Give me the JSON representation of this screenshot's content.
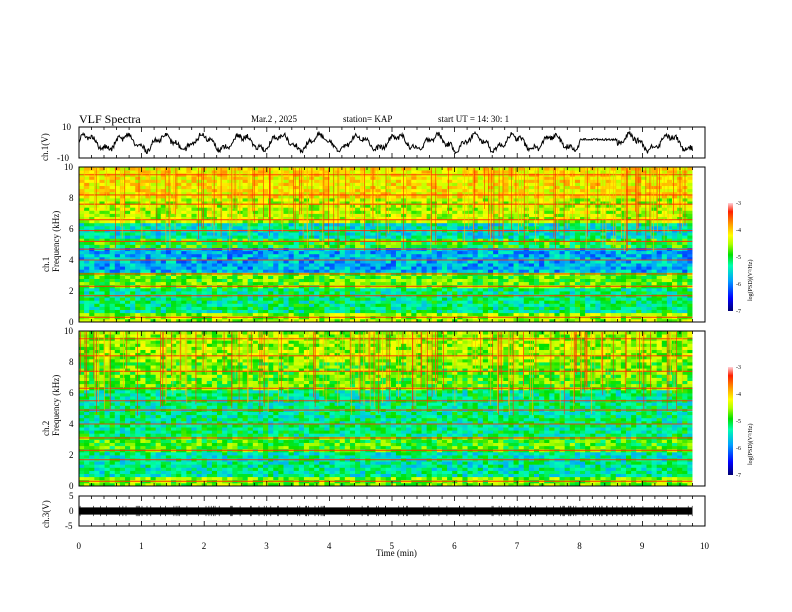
{
  "header": {
    "title": "VLF Spectra",
    "date": "Mar.2 , 2025",
    "station": "station= KAP",
    "start_ut": "start UT =  14: 30: 1"
  },
  "chart_data": [
    {
      "type": "line",
      "panel": "ch1-waveform",
      "ylabel": "ch.1(V)",
      "ylim": [
        -10,
        10
      ],
      "yticks": [
        "10",
        "-10"
      ],
      "xlim": [
        0,
        10
      ],
      "note_series": "continuous oscillating waveform, amplitude ~±6 V, quieter segment 8.0–8.6 min"
    },
    {
      "type": "heatmap",
      "panel": "ch1-spectrogram",
      "ylabel": "ch.1\nFrequency (kHz)",
      "ylim": [
        0,
        10
      ],
      "yticks": [
        "0",
        "2",
        "4",
        "6",
        "8",
        "10"
      ],
      "xlim": [
        0,
        10
      ],
      "data_end_min": 9.8,
      "colorbar": {
        "label": "log(PSD)(V²/Hz)",
        "range": [
          -7,
          -3
        ],
        "ticks": [
          "-3",
          "-4",
          "-5",
          "-6",
          "-7"
        ]
      },
      "bands_khz": [
        {
          "from": 0.0,
          "to": 0.6,
          "level": -4.6
        },
        {
          "from": 0.6,
          "to": 2.2,
          "level": -5.3
        },
        {
          "from": 2.2,
          "to": 3.2,
          "level": -4.8
        },
        {
          "from": 3.2,
          "to": 4.8,
          "level": -5.8
        },
        {
          "from": 4.8,
          "to": 5.4,
          "level": -5.0
        },
        {
          "from": 5.4,
          "to": 6.4,
          "level": -5.5
        },
        {
          "from": 6.4,
          "to": 8.0,
          "level": -4.5
        },
        {
          "from": 8.0,
          "to": 10.0,
          "level": -4.2
        }
      ],
      "lines_khz": [
        0.3,
        1.7,
        2.3,
        3.1,
        4.0,
        4.7,
        5.2,
        5.9,
        6.6,
        7.6,
        8.2,
        9.5
      ]
    },
    {
      "type": "heatmap",
      "panel": "ch2-spectrogram",
      "ylabel": "ch.2\nFrequency (kHz)",
      "ylim": [
        0,
        10
      ],
      "yticks": [
        "0",
        "2",
        "4",
        "6",
        "8",
        "10"
      ],
      "xlim": [
        0,
        10
      ],
      "data_end_min": 9.8,
      "colorbar": {
        "label": "log(PSD)(V²/Hz)",
        "range": [
          -7,
          -3
        ],
        "ticks": [
          "-3",
          "-4",
          "-5",
          "-6",
          "-7"
        ]
      },
      "bands_khz": [
        {
          "from": 0.0,
          "to": 0.6,
          "level": -4.7
        },
        {
          "from": 0.6,
          "to": 2.2,
          "level": -5.4
        },
        {
          "from": 2.2,
          "to": 3.2,
          "level": -4.9
        },
        {
          "from": 3.2,
          "to": 4.8,
          "level": -5.3
        },
        {
          "from": 4.8,
          "to": 6.2,
          "level": -5.3
        },
        {
          "from": 6.2,
          "to": 8.0,
          "level": -4.8
        },
        {
          "from": 8.0,
          "to": 10.0,
          "level": -4.6
        }
      ],
      "lines_khz": [
        0.3,
        1.7,
        2.3,
        3.1,
        4.0,
        4.9,
        5.5,
        6.3,
        7.4,
        8.4,
        9.5
      ]
    },
    {
      "type": "line",
      "panel": "ch3-waveform",
      "ylabel": "ch.3(V)",
      "ylim": [
        -5,
        5
      ],
      "yticks": [
        "5",
        "0",
        "-5"
      ],
      "xlabel": "Time (min)",
      "xlim": [
        0,
        10
      ],
      "xticks": [
        "0",
        "1",
        "2",
        "3",
        "4",
        "5",
        "6",
        "7",
        "8",
        "9",
        "10"
      ],
      "note_series": "thick flat trace near 0 V from 0 to 9.8 min"
    }
  ],
  "colors": {
    "scale": [
      "#000070",
      "#0000ff",
      "#00a0ff",
      "#00ffb0",
      "#00e000",
      "#b0ff00",
      "#ffff00",
      "#ffa000",
      "#ff2000",
      "#ffd0d8"
    ]
  }
}
